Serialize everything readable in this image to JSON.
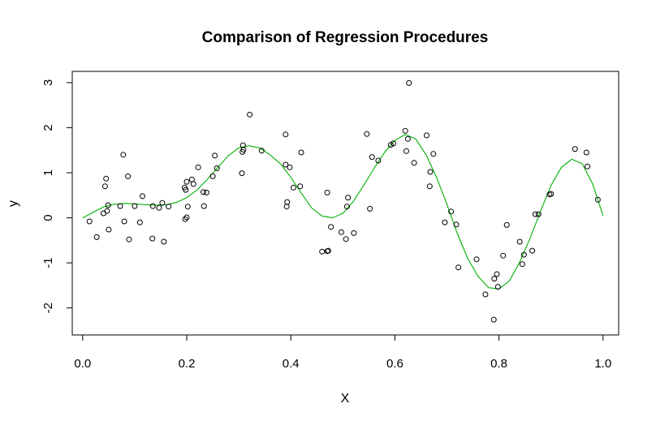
{
  "chart_data": {
    "type": "scatter",
    "title": "Comparison of Regression Procedures",
    "xlabel": "X",
    "ylabel": "y",
    "xlim": [
      -0.02,
      1.03
    ],
    "ylim": [
      -2.6,
      3.25
    ],
    "x_ticks": [
      "0.0",
      "0.2",
      "0.4",
      "0.6",
      "0.8",
      "1.0"
    ],
    "y_ticks": [
      "-2",
      "-1",
      "0",
      "1",
      "2",
      "3"
    ],
    "grid": false,
    "legend": "none",
    "colors": {
      "points": "#000000",
      "curve": "#00b000",
      "axis": "#000000"
    },
    "points": [
      [
        0.013,
        -0.08
      ],
      [
        0.027,
        -0.43
      ],
      [
        0.04,
        0.1
      ],
      [
        0.043,
        0.7
      ],
      [
        0.045,
        0.87
      ],
      [
        0.047,
        0.15
      ],
      [
        0.049,
        0.28
      ],
      [
        0.05,
        -0.26
      ],
      [
        0.072,
        0.26
      ],
      [
        0.078,
        1.4
      ],
      [
        0.08,
        -0.08
      ],
      [
        0.087,
        0.92
      ],
      [
        0.089,
        -0.48
      ],
      [
        0.1,
        0.26
      ],
      [
        0.11,
        -0.1
      ],
      [
        0.115,
        0.48
      ],
      [
        0.134,
        -0.46
      ],
      [
        0.135,
        0.26
      ],
      [
        0.147,
        0.22
      ],
      [
        0.153,
        0.33
      ],
      [
        0.156,
        -0.53
      ],
      [
        0.165,
        0.25
      ],
      [
        0.196,
        0.67
      ],
      [
        0.198,
        0.62
      ],
      [
        0.197,
        -0.03
      ],
      [
        0.2,
        0.8
      ],
      [
        0.2,
        0.01
      ],
      [
        0.202,
        0.25
      ],
      [
        0.21,
        0.85
      ],
      [
        0.213,
        0.75
      ],
      [
        0.222,
        1.12
      ],
      [
        0.232,
        0.57
      ],
      [
        0.233,
        0.26
      ],
      [
        0.238,
        0.56
      ],
      [
        0.25,
        0.92
      ],
      [
        0.254,
        1.38
      ],
      [
        0.258,
        1.1
      ],
      [
        0.306,
        0.99
      ],
      [
        0.307,
        1.46
      ],
      [
        0.308,
        1.61
      ],
      [
        0.309,
        1.51
      ],
      [
        0.321,
        2.29
      ],
      [
        0.344,
        1.49
      ],
      [
        0.39,
        1.85
      ],
      [
        0.39,
        1.18
      ],
      [
        0.392,
        0.25
      ],
      [
        0.393,
        0.35
      ],
      [
        0.398,
        1.12
      ],
      [
        0.405,
        0.67
      ],
      [
        0.418,
        0.7
      ],
      [
        0.42,
        1.45
      ],
      [
        0.46,
        -0.75
      ],
      [
        0.47,
        -0.74
      ],
      [
        0.47,
        0.56
      ],
      [
        0.472,
        -0.73
      ],
      [
        0.477,
        -0.2
      ],
      [
        0.497,
        -0.32
      ],
      [
        0.506,
        -0.47
      ],
      [
        0.508,
        0.25
      ],
      [
        0.51,
        0.45
      ],
      [
        0.521,
        -0.34
      ],
      [
        0.546,
        1.86
      ],
      [
        0.552,
        0.2
      ],
      [
        0.556,
        1.35
      ],
      [
        0.568,
        1.27
      ],
      [
        0.592,
        1.62
      ],
      [
        0.597,
        1.65
      ],
      [
        0.62,
        1.93
      ],
      [
        0.622,
        1.48
      ],
      [
        0.625,
        1.75
      ],
      [
        0.627,
        2.99
      ],
      [
        0.637,
        1.22
      ],
      [
        0.661,
        1.83
      ],
      [
        0.667,
        0.7
      ],
      [
        0.668,
        1.02
      ],
      [
        0.674,
        1.42
      ],
      [
        0.696,
        -0.1
      ],
      [
        0.708,
        0.14
      ],
      [
        0.718,
        -0.15
      ],
      [
        0.722,
        -1.1
      ],
      [
        0.757,
        -0.92
      ],
      [
        0.774,
        -1.7
      ],
      [
        0.79,
        -2.26
      ],
      [
        0.791,
        -1.35
      ],
      [
        0.796,
        -1.25
      ],
      [
        0.798,
        -1.53
      ],
      [
        0.808,
        -0.84
      ],
      [
        0.815,
        -0.16
      ],
      [
        0.84,
        -0.53
      ],
      [
        0.845,
        -1.03
      ],
      [
        0.848,
        -0.82
      ],
      [
        0.864,
        -0.73
      ],
      [
        0.87,
        0.08
      ],
      [
        0.876,
        0.08
      ],
      [
        0.897,
        0.52
      ],
      [
        0.9,
        0.53
      ],
      [
        0.946,
        1.53
      ],
      [
        0.968,
        1.45
      ],
      [
        0.97,
        1.14
      ],
      [
        0.99,
        0.4
      ]
    ],
    "series": [
      {
        "type": "line",
        "x": [
          0.0,
          0.02,
          0.04,
          0.06,
          0.08,
          0.1,
          0.12,
          0.14,
          0.16,
          0.18,
          0.2,
          0.22,
          0.24,
          0.26,
          0.28,
          0.3,
          0.32,
          0.34,
          0.36,
          0.38,
          0.4,
          0.42,
          0.44,
          0.46,
          0.48,
          0.5,
          0.52,
          0.54,
          0.56,
          0.58,
          0.6,
          0.62,
          0.64,
          0.66,
          0.68,
          0.7,
          0.72,
          0.74,
          0.76,
          0.78,
          0.8,
          0.82,
          0.84,
          0.86,
          0.88,
          0.9,
          0.92,
          0.94,
          0.96,
          0.98,
          1.0
        ],
        "y": [
          0.0,
          0.12,
          0.24,
          0.3,
          0.32,
          0.31,
          0.29,
          0.28,
          0.29,
          0.34,
          0.45,
          0.62,
          0.86,
          1.12,
          1.38,
          1.55,
          1.6,
          1.55,
          1.4,
          1.2,
          0.9,
          0.55,
          0.22,
          0.04,
          0.0,
          0.1,
          0.36,
          0.72,
          1.1,
          1.45,
          1.72,
          1.85,
          1.75,
          1.4,
          0.9,
          0.3,
          -0.35,
          -0.9,
          -1.3,
          -1.55,
          -1.58,
          -1.4,
          -0.98,
          -0.45,
          0.15,
          0.72,
          1.12,
          1.3,
          1.2,
          0.75,
          0.05
        ]
      }
    ]
  }
}
